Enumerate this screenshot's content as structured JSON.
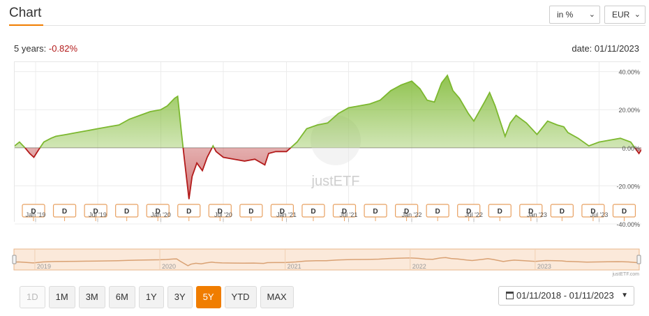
{
  "header": {
    "title": "Chart"
  },
  "controls": {
    "mode_select": "in %",
    "currency_select": "EUR"
  },
  "summary": {
    "period_label": "5 years: ",
    "performance": "-0.82%",
    "date_label": "date: 01/11/2023"
  },
  "watermark": "justETF",
  "navigator": {
    "year_labels": [
      "2019",
      "2020",
      "2021",
      "2022",
      "2023"
    ],
    "credit": "justETF.com"
  },
  "range_buttons": [
    {
      "label": "1D",
      "state": "disabled"
    },
    {
      "label": "1M",
      "state": "normal"
    },
    {
      "label": "3M",
      "state": "normal"
    },
    {
      "label": "6M",
      "state": "normal"
    },
    {
      "label": "1Y",
      "state": "normal"
    },
    {
      "label": "3Y",
      "state": "normal"
    },
    {
      "label": "5Y",
      "state": "active"
    },
    {
      "label": "YTD",
      "state": "normal"
    },
    {
      "label": "MAX",
      "state": "normal"
    }
  ],
  "date_range": "01/11/2018 - 01/11/2023",
  "colors": {
    "accent": "#f07d00",
    "positive": "#7cb82f",
    "negative": "#b31b1b",
    "marker_border": "#e8a060"
  },
  "icons": {
    "calendar": "calendar-icon",
    "dropdown": "caret-down-icon"
  },
  "chart_data": {
    "type": "area",
    "title": "",
    "xlabel": "",
    "ylabel": "",
    "x_tick_labels": [
      "Jan '19",
      "Jul '19",
      "Jan '20",
      "Jul '20",
      "Jan '21",
      "Jul '21",
      "Jan '22",
      "Jul '22",
      "Jan '23",
      "Jul '23"
    ],
    "y_tick_labels": [
      "40.00%",
      "20.00%",
      "0.00%",
      "-20.00%",
      "-40.00%"
    ],
    "ylim": [
      -40,
      45
    ],
    "x_range": [
      "2018-11-01",
      "2023-11-01"
    ],
    "grid": true,
    "series": [
      {
        "x": [
          "2018-11-01",
          "2018-11-15",
          "2018-12-01",
          "2018-12-15",
          "2018-12-27",
          "2019-01-10",
          "2019-01-25",
          "2019-02-15",
          "2019-03-01",
          "2019-04-01",
          "2019-05-01",
          "2019-06-01",
          "2019-07-01",
          "2019-08-01",
          "2019-09-01",
          "2019-10-01",
          "2019-11-01",
          "2019-12-01",
          "2020-01-01",
          "2020-01-20",
          "2020-02-10",
          "2020-02-19",
          "2020-03-01",
          "2020-03-09",
          "2020-03-23",
          "2020-04-01",
          "2020-04-15",
          "2020-05-01",
          "2020-05-15",
          "2020-06-01",
          "2020-06-10",
          "2020-07-01",
          "2020-08-01",
          "2020-09-01",
          "2020-10-01",
          "2020-10-30",
          "2020-11-10",
          "2020-12-01",
          "2021-01-01",
          "2021-02-01",
          "2021-03-01",
          "2021-04-01",
          "2021-05-01",
          "2021-06-01",
          "2021-07-01",
          "2021-08-01",
          "2021-09-01",
          "2021-10-01",
          "2021-11-01",
          "2021-12-01",
          "2022-01-01",
          "2022-01-25",
          "2022-02-15",
          "2022-03-08",
          "2022-03-29",
          "2022-04-15",
          "2022-05-01",
          "2022-05-20",
          "2022-06-15",
          "2022-07-01",
          "2022-08-01",
          "2022-08-16",
          "2022-09-01",
          "2022-09-30",
          "2022-10-15",
          "2022-11-01",
          "2022-12-01",
          "2023-01-01",
          "2023-02-01",
          "2023-03-01",
          "2023-03-20",
          "2023-04-01",
          "2023-05-01",
          "2023-06-01",
          "2023-07-01",
          "2023-08-01",
          "2023-09-01",
          "2023-10-01",
          "2023-10-25",
          "2023-11-01"
        ],
        "values": [
          1,
          3,
          0,
          -3,
          -5,
          -1,
          3,
          5,
          6,
          7,
          8,
          9,
          10,
          11,
          12,
          15,
          17,
          19,
          20,
          22,
          26,
          27,
          8,
          -5,
          -27,
          -15,
          -8,
          -12,
          -5,
          1,
          -2,
          -5,
          -6,
          -7,
          -6,
          -9,
          -3,
          -2,
          -2,
          3,
          10,
          12,
          13,
          18,
          21,
          22,
          23,
          25,
          30,
          33,
          35,
          31,
          25,
          24,
          34,
          38,
          30,
          26,
          18,
          14,
          24,
          29,
          22,
          6,
          13,
          17,
          13,
          7,
          14,
          12,
          11,
          8,
          5,
          1,
          3,
          4,
          5,
          3,
          -3,
          -1
        ]
      }
    ],
    "event_markers": {
      "label": "D",
      "count": 20
    }
  }
}
